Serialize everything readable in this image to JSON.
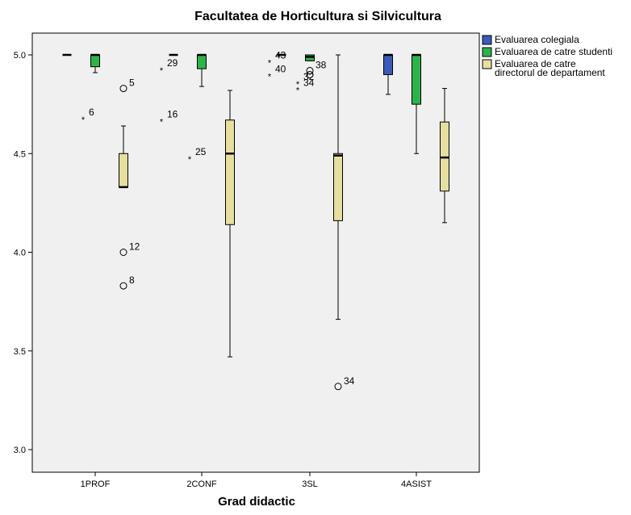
{
  "chart_data": {
    "type": "boxplot",
    "title": "Facultatea de Horticultura si Silvicultura",
    "xlabel": "Grad didactic",
    "ylabel": "",
    "ylim": [
      2.9,
      5.1
    ],
    "yticks": [
      3.0,
      3.5,
      4.0,
      4.5,
      5.0
    ],
    "yticks_labels": [
      "3.0",
      "3.5",
      "4.0",
      "4.5",
      "5.0"
    ],
    "categories": [
      "1PROF",
      "2CONF",
      "3SL",
      "4ASIST"
    ],
    "legend_position": "right",
    "grid": false,
    "series": [
      {
        "name": "Evaluarea colegiala",
        "color": "#3a5bb8",
        "boxes": [
          {
            "category": "1PROF",
            "min": 5.0,
            "q1": 5.0,
            "median": 5.0,
            "q3": 5.0,
            "max": 5.0,
            "outliers": [],
            "extremes": []
          },
          {
            "category": "2CONF",
            "min": 5.0,
            "q1": 5.0,
            "median": 5.0,
            "q3": 5.0,
            "max": 5.0,
            "outliers": [],
            "extremes": [
              {
                "value": 4.93,
                "label": "29"
              },
              {
                "value": 4.67,
                "label": "16"
              }
            ]
          },
          {
            "category": "3SL",
            "min": 5.0,
            "q1": 5.0,
            "median": 5.0,
            "q3": 5.0,
            "max": 5.0,
            "outliers": [],
            "extremes": [
              {
                "value": 4.97,
                "label": "43"
              },
              {
                "value": 4.9,
                "label": "40"
              }
            ]
          },
          {
            "category": "4ASIST",
            "min": 4.8,
            "q1": 4.9,
            "median": 5.0,
            "q3": 5.0,
            "max": 5.0,
            "outliers": [],
            "extremes": []
          }
        ]
      },
      {
        "name": "Evaluarea de catre studenti",
        "color": "#2eb34a",
        "boxes": [
          {
            "category": "1PROF",
            "min": 4.91,
            "q1": 4.94,
            "median": 5.0,
            "q3": 5.0,
            "max": 5.0,
            "outliers": [],
            "extremes": [
              {
                "value": 4.68,
                "label": "6"
              }
            ]
          },
          {
            "category": "2CONF",
            "min": 4.84,
            "q1": 4.93,
            "median": 5.0,
            "q3": 5.0,
            "max": 5.0,
            "outliers": [],
            "extremes": [
              {
                "value": 4.48,
                "label": "25"
              }
            ]
          },
          {
            "category": "3SL",
            "min": 4.97,
            "q1": 4.97,
            "median": 4.99,
            "q3": 5.0,
            "max": 5.0,
            "outliers": [
              {
                "value": 4.92,
                "label": "38"
              },
              {
                "value": 4.9,
                "label": ""
              }
            ],
            "extremes": [
              {
                "value": 4.86,
                "label": "32"
              },
              {
                "value": 4.83,
                "label": "34"
              }
            ]
          },
          {
            "category": "4ASIST",
            "min": 4.5,
            "q1": 4.75,
            "median": 5.0,
            "q3": 5.0,
            "max": 5.0,
            "outliers": [],
            "extremes": []
          }
        ]
      },
      {
        "name": "Evaluarea de catre directorul de departament",
        "color": "#e6dfa0",
        "boxes": [
          {
            "category": "1PROF",
            "min": 4.33,
            "q1": 4.33,
            "median": 4.33,
            "q3": 4.5,
            "max": 4.64,
            "outliers": [
              {
                "value": 4.83,
                "label": "5"
              },
              {
                "value": 4.0,
                "label": "12"
              },
              {
                "value": 3.83,
                "label": "8"
              }
            ],
            "extremes": []
          },
          {
            "category": "2CONF",
            "min": 3.47,
            "q1": 4.14,
            "median": 4.5,
            "q3": 4.67,
            "max": 4.82,
            "outliers": [],
            "extremes": []
          },
          {
            "category": "3SL",
            "min": 3.66,
            "q1": 4.16,
            "median": 4.49,
            "q3": 4.5,
            "max": 5.0,
            "outliers": [
              {
                "value": 3.32,
                "label": "34"
              }
            ],
            "extremes": []
          },
          {
            "category": "4ASIST",
            "min": 4.15,
            "q1": 4.31,
            "median": 4.48,
            "q3": 4.66,
            "max": 4.83,
            "outliers": [],
            "extremes": []
          }
        ]
      }
    ]
  },
  "legend": {
    "items": [
      {
        "lines": [
          "Evaluarea colegiala"
        ],
        "color": "#3a5bb8"
      },
      {
        "lines": [
          "Evaluarea de catre studenti"
        ],
        "color": "#2eb34a"
      },
      {
        "lines": [
          "Evaluarea de catre",
          "directorul de departament"
        ],
        "color": "#e6dfa0"
      }
    ]
  }
}
